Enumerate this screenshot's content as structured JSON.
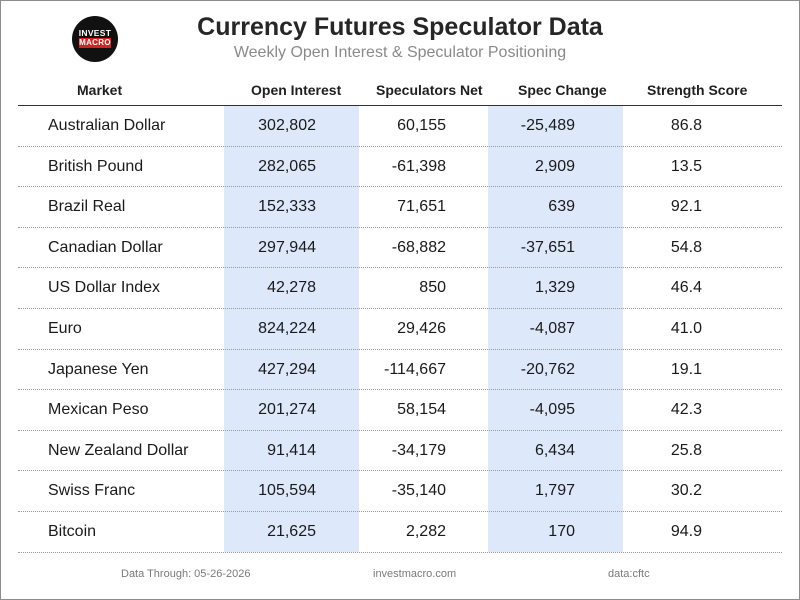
{
  "logo": {
    "line1": "INVEST",
    "line2": "MACRO",
    "bg_color": "#111111",
    "accent_color": "#d32222"
  },
  "chart_data": {
    "type": "table",
    "title": "Currency Futures Speculator Data",
    "subtitle": "Weekly Open Interest & Speculator Positioning",
    "columns": [
      "Market",
      "Open Interest",
      "Speculators Net",
      "Spec Change",
      "Strength Score"
    ],
    "highlight_color": "#dde8fb",
    "highlighted_columns": [
      "Open Interest",
      "Spec Change"
    ],
    "rows": [
      {
        "market": "Australian Dollar",
        "open_interest": "302,802",
        "spec_net": "60,155",
        "spec_change": "-25,489",
        "strength": "86.8"
      },
      {
        "market": "British Pound",
        "open_interest": "282,065",
        "spec_net": "-61,398",
        "spec_change": "2,909",
        "strength": "13.5"
      },
      {
        "market": "Brazil Real",
        "open_interest": "152,333",
        "spec_net": "71,651",
        "spec_change": "639",
        "strength": "92.1"
      },
      {
        "market": "Canadian Dollar",
        "open_interest": "297,944",
        "spec_net": "-68,882",
        "spec_change": "-37,651",
        "strength": "54.8"
      },
      {
        "market": "US Dollar Index",
        "open_interest": "42,278",
        "spec_net": "850",
        "spec_change": "1,329",
        "strength": "46.4"
      },
      {
        "market": "Euro",
        "open_interest": "824,224",
        "spec_net": "29,426",
        "spec_change": "-4,087",
        "strength": "41.0"
      },
      {
        "market": "Japanese Yen",
        "open_interest": "427,294",
        "spec_net": "-114,667",
        "spec_change": "-20,762",
        "strength": "19.1"
      },
      {
        "market": "Mexican Peso",
        "open_interest": "201,274",
        "spec_net": "58,154",
        "spec_change": "-4,095",
        "strength": "42.3"
      },
      {
        "market": "New Zealand Dollar",
        "open_interest": "91,414",
        "spec_net": "-34,179",
        "spec_change": "6,434",
        "strength": "25.8"
      },
      {
        "market": "Swiss Franc",
        "open_interest": "105,594",
        "spec_net": "-35,140",
        "spec_change": "1,797",
        "strength": "30.2"
      },
      {
        "market": "Bitcoin",
        "open_interest": "21,625",
        "spec_net": "2,282",
        "spec_change": "170",
        "strength": "94.9"
      }
    ]
  },
  "footer": {
    "data_through": "Data Through: 05-26-2026",
    "site": "investmacro.com",
    "source": "data:cftc"
  }
}
